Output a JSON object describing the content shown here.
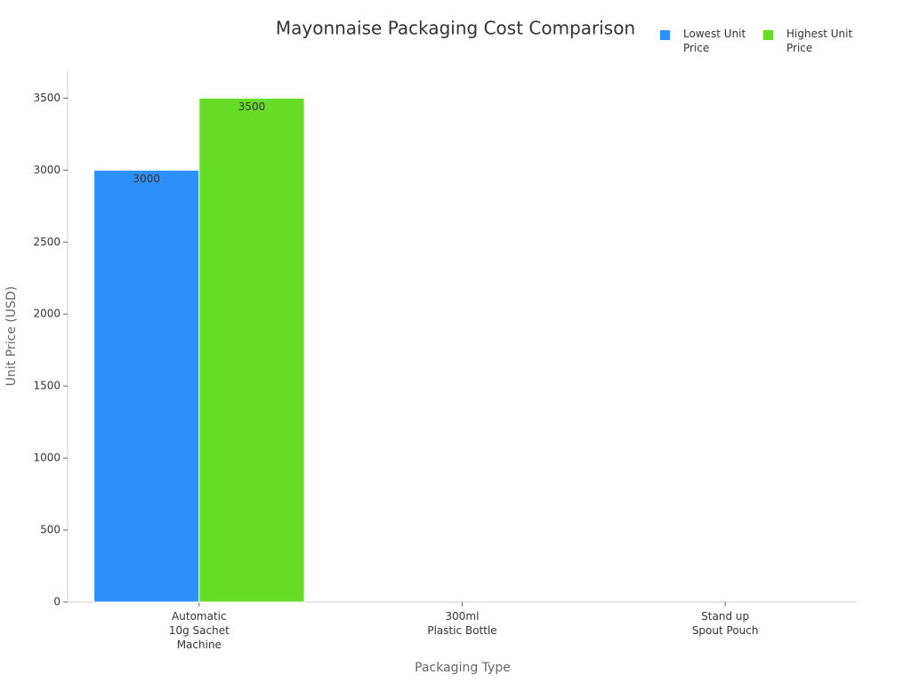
{
  "chart_data": {
    "type": "bar",
    "title": "Mayonnaise Packaging Cost Comparison",
    "xlabel": "Packaging Type",
    "ylabel": "Unit Price (USD)",
    "categories": [
      "Automatic\n10g Sachet\nMachine",
      "300ml\nPlastic Bottle",
      "Stand up\nSpout Pouch"
    ],
    "series": [
      {
        "name": "Lowest Unit Price",
        "color": "#2e91fb",
        "values": [
          3000,
          null,
          null
        ]
      },
      {
        "name": "Highest Unit Price",
        "color": "#66dc26",
        "values": [
          3500,
          null,
          null
        ]
      }
    ],
    "ylim": [
      0,
      3700
    ],
    "yticks": [
      0,
      500,
      1000,
      1500,
      2000,
      2500,
      3000,
      3500
    ],
    "grid": false,
    "legend": "top-right"
  }
}
